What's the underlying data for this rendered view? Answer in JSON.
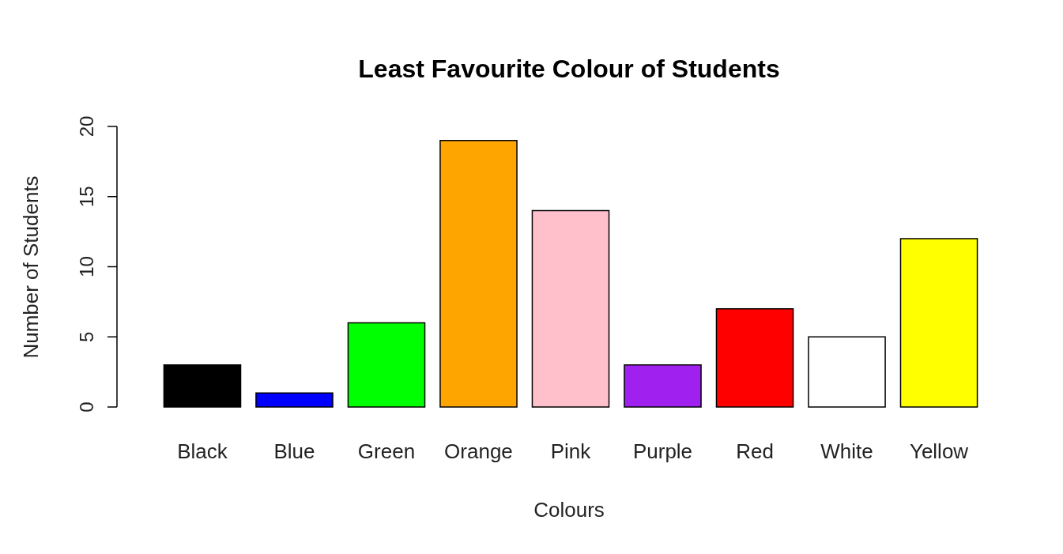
{
  "chart_data": {
    "type": "bar",
    "title": "Least Favourite Colour of Students",
    "xlabel": "Colours",
    "ylabel": "Number of Students",
    "categories": [
      "Black",
      "Blue",
      "Green",
      "Orange",
      "Pink",
      "Purple",
      "Red",
      "White",
      "Yellow"
    ],
    "values": [
      3,
      1,
      6,
      19,
      14,
      3,
      7,
      5,
      12
    ],
    "colors": [
      "#000000",
      "#0000ff",
      "#00ff00",
      "#ffa500",
      "#ffc0cb",
      "#a020f0",
      "#ff0000",
      "#ffffff",
      "#ffff00"
    ],
    "ylim": [
      0,
      20
    ],
    "yticks": [
      0,
      5,
      10,
      15,
      20
    ]
  }
}
